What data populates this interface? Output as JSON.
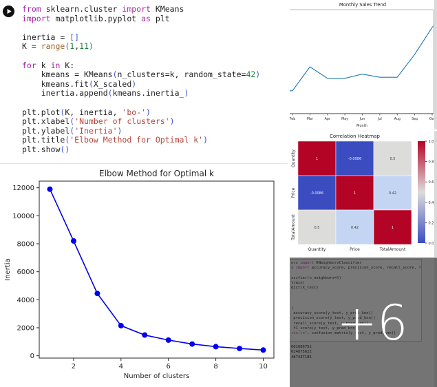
{
  "colors": {
    "kw": "#a626a4",
    "bi": "#a0662b",
    "num": "#188038",
    "str": "#b5463b",
    "br": "#3c56d6",
    "plain": "#1f1f1f",
    "sales_line": "#1f77b4",
    "elbow_line": "#0000f0",
    "heat_red": "#b40426",
    "heat_blue": "#3b4cc0"
  },
  "code_cell": {
    "run_button": "run cell",
    "lines": [
      [
        {
          "t": "from",
          "c": "kw"
        },
        {
          "t": " sklearn.cluster ",
          "c": "plain"
        },
        {
          "t": "import",
          "c": "kw"
        },
        {
          "t": " KMeans",
          "c": "plain"
        }
      ],
      [
        {
          "t": "import",
          "c": "kw"
        },
        {
          "t": " matplotlib.pyplot ",
          "c": "plain"
        },
        {
          "t": "as",
          "c": "kw"
        },
        {
          "t": " plt",
          "c": "plain"
        }
      ],
      [],
      [
        {
          "t": "inertia = ",
          "c": "plain"
        },
        {
          "t": "[]",
          "c": "br"
        }
      ],
      [
        {
          "t": "K = ",
          "c": "plain"
        },
        {
          "t": "range",
          "c": "bi"
        },
        {
          "t": "(",
          "c": "br"
        },
        {
          "t": "1",
          "c": "num"
        },
        {
          "t": ",",
          "c": "plain"
        },
        {
          "t": "11",
          "c": "num"
        },
        {
          "t": ")",
          "c": "br"
        }
      ],
      [],
      [
        {
          "t": "for",
          "c": "kw"
        },
        {
          "t": " k ",
          "c": "plain"
        },
        {
          "t": "in",
          "c": "kw"
        },
        {
          "t": " K:",
          "c": "plain"
        }
      ],
      [
        {
          "t": "    kmeans = KMeans",
          "c": "plain"
        },
        {
          "t": "(",
          "c": "br"
        },
        {
          "t": "n_clusters=k, random_state=",
          "c": "plain"
        },
        {
          "t": "42",
          "c": "num"
        },
        {
          "t": ")",
          "c": "br"
        }
      ],
      [
        {
          "t": "    kmeans.fit",
          "c": "plain"
        },
        {
          "t": "(",
          "c": "br"
        },
        {
          "t": "X_scaled",
          "c": "plain"
        },
        {
          "t": ")",
          "c": "br"
        }
      ],
      [
        {
          "t": "    inertia.append",
          "c": "plain"
        },
        {
          "t": "(",
          "c": "br"
        },
        {
          "t": "kmeans.inertia_",
          "c": "plain"
        },
        {
          "t": ")",
          "c": "br"
        }
      ],
      [],
      [
        {
          "t": "plt.plot",
          "c": "plain"
        },
        {
          "t": "(",
          "c": "br"
        },
        {
          "t": "K, inertia, ",
          "c": "plain"
        },
        {
          "t": "'bo-'",
          "c": "str"
        },
        {
          "t": ")",
          "c": "br"
        }
      ],
      [
        {
          "t": "plt.xlabel",
          "c": "plain"
        },
        {
          "t": "(",
          "c": "br"
        },
        {
          "t": "'Number of clusters'",
          "c": "str"
        },
        {
          "t": ")",
          "c": "br"
        }
      ],
      [
        {
          "t": "plt.ylabel",
          "c": "plain"
        },
        {
          "t": "(",
          "c": "br"
        },
        {
          "t": "'Inertia'",
          "c": "str"
        },
        {
          "t": ")",
          "c": "br"
        }
      ],
      [
        {
          "t": "plt.title",
          "c": "plain"
        },
        {
          "t": "(",
          "c": "br"
        },
        {
          "t": "'Elbow Method for Optimal k'",
          "c": "str"
        },
        {
          "t": ")",
          "c": "br"
        }
      ],
      [
        {
          "t": "plt.show",
          "c": "plain"
        },
        {
          "t": "(",
          "c": "br"
        },
        {
          "t": ")",
          "c": "br"
        }
      ]
    ]
  },
  "chart_data": [
    {
      "type": "line",
      "title": "Elbow Method for Optimal k",
      "xlabel": "Number of clusters",
      "ylabel": "Inertia",
      "x": [
        1,
        2,
        3,
        4,
        5,
        6,
        7,
        8,
        9,
        10
      ],
      "y": [
        11900,
        8200,
        4450,
        2150,
        1480,
        1120,
        840,
        650,
        520,
        410
      ],
      "xticks": [
        2,
        4,
        6,
        8,
        10
      ],
      "yticks": [
        0,
        2000,
        4000,
        6000,
        8000,
        10000,
        12000
      ],
      "xlim": [
        0.55,
        10.45
      ],
      "ylim": [
        -165,
        12475
      ],
      "style": "bo-",
      "grid": false,
      "legend": "none"
    },
    {
      "type": "line",
      "title": "Monthly Sales Trend",
      "xlabel": "Month",
      "categories": [
        "Feb",
        "Mar",
        "Apr",
        "May",
        "Jun",
        "Jul",
        "Aug",
        "Sep",
        "Oct"
      ],
      "values_relative_pct": [
        22,
        45,
        34,
        34,
        38,
        35,
        35,
        57,
        83
      ],
      "note": "y-axis labels cropped out of view; values are % of visible plot height, line continues past both crop edges",
      "grid": false,
      "legend": "none"
    },
    {
      "type": "heatmap",
      "title": "Correlation Heatmap",
      "labels": [
        "Quantity",
        "Price",
        "TotalAmount"
      ],
      "matrix": [
        [
          1,
          -0.0086,
          0.5
        ],
        [
          -0.0086,
          1,
          0.42
        ],
        [
          0.5,
          0.42,
          1
        ]
      ],
      "cell_text": [
        [
          "1",
          "-0.0086",
          "0.5"
        ],
        [
          "-0.0086",
          "1",
          "0.42"
        ],
        [
          "0.5",
          "0.42",
          "1"
        ]
      ],
      "cell_colors": [
        [
          "#b40426",
          "#3b4cc0",
          "#dcdcdb"
        ],
        [
          "#3b4cc0",
          "#b40426",
          "#c4d5f3"
        ],
        [
          "#dcdcdb",
          "#c4d5f3",
          "#b40426"
        ]
      ],
      "colormap": "coolwarm",
      "colorbar": {
        "ticks": [
          "1.0",
          "0.8",
          "0.6",
          "0.4",
          "0.2",
          "0.0"
        ],
        "top_color": "#b40426",
        "mid_color": "#dddcdc",
        "bottom_color": "#3b4cc0"
      }
    }
  ],
  "dark_panel": {
    "overlay_label": "+6",
    "code_lines": [
      [
        {
          "t": "ors ",
          "c": "plain"
        },
        {
          "t": "import",
          "c": "kw"
        },
        {
          "t": " KNeighborsClassifier",
          "c": "plain"
        }
      ],
      [
        {
          "t": "s ",
          "c": "plain"
        },
        {
          "t": "import",
          "c": "kw"
        },
        {
          "t": " accuracy_score, precision_score, recall_score, f1_score, co",
          "c": "plain"
        }
      ],
      [],
      [
        {
          "t": "ssifier(n_neighbors=",
          "c": "plain"
        },
        {
          "t": "5",
          "c": "num"
        },
        {
          "t": ")",
          "c": "plain"
        }
      ],
      [
        {
          "t": "train)",
          "c": "plain"
        }
      ],
      [
        {
          "t": "dict(X_test)",
          "c": "plain"
        }
      ],
      [],
      [],
      [],
      [
        {
          "t": ")",
          "c": "plain"
        }
      ],
      [
        {
          "t": " accuracy_score(y_test, y_pred_knn))",
          "c": "plain"
        }
      ],
      [
        {
          "t": " precision_score(y_test, y_pred_knn))",
          "c": "plain"
        }
      ],
      [
        {
          "t": " recall_score(y_test, y_pred_knn))",
          "c": "plain"
        }
      ],
      [
        {
          "t": " f1_score(y_test, y_pred_knn))",
          "c": "plain"
        }
      ],
      [
        {
          "t": "rix:\\n\"",
          "c": "str"
        },
        {
          "t": ", confusion_matrix(y_test, y_pred_knn))",
          "c": "plain"
        }
      ]
    ],
    "output_lines": [
      "001086752",
      "024875622",
      "487437185"
    ]
  }
}
